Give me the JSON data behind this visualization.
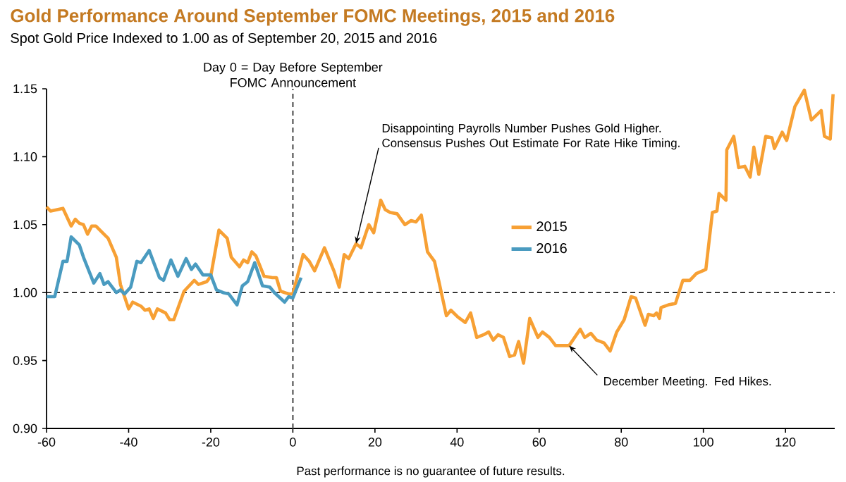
{
  "chart_data": {
    "type": "line",
    "title": "Gold Performance Around September FOMC Meetings, 2015 and 2016",
    "subtitle": "Spot Gold Price Indexed to 1.00 as of September 20, 2015 and 2016",
    "series": [
      {
        "name": "2015",
        "color": "#f7a034",
        "x": [
          -60,
          -59,
          -56,
          -54,
          -53,
          -52,
          -51,
          -50,
          -49,
          -48,
          -46,
          -45,
          -43,
          -42,
          -41,
          -40,
          -39,
          -37,
          -36,
          -35,
          -34,
          -33,
          -31,
          -30,
          -29,
          -26.5,
          -24,
          -23,
          -21,
          -20,
          -18,
          -16,
          -15,
          -13,
          -12,
          -11,
          -10,
          -9,
          -7,
          -5,
          -4,
          -3,
          -1,
          0,
          2.5,
          4,
          5.3,
          7.7,
          10,
          11.3,
          12.5,
          13.6,
          15.4,
          16.6,
          18.5,
          19.7,
          21.4,
          22.5,
          23.7,
          25.4,
          27.3,
          28.8,
          30,
          31.3,
          32.8,
          34.5,
          37.4,
          38.5,
          40.2,
          42,
          43.3,
          44.8,
          46.5,
          47.7,
          48.8,
          50,
          51.3,
          52.8,
          54,
          55,
          56.2,
          57.7,
          59.7,
          60.8,
          62.5,
          64,
          65.4,
          67.3,
          70,
          71.1,
          72.6,
          74,
          75.8,
          77.3,
          78.9,
          80.7,
          82.4,
          83.5,
          85.8,
          86.6,
          87.9,
          88.6,
          89.3,
          89.7,
          91.5,
          93.2,
          95,
          96.7,
          98.3,
          100.6,
          102.2,
          103.3,
          103.8,
          105.5,
          105.7,
          107.4,
          108.6,
          110.1,
          111.4,
          112.3,
          113.5,
          115.2,
          116.7,
          117.3,
          119.2,
          120.3,
          122.3,
          124.6,
          126.3,
          128.7,
          129.5,
          130.9,
          131.6
        ],
        "values": [
          1.063,
          1.06,
          1.062,
          1.049,
          1.054,
          1.051,
          1.05,
          1.043,
          1.049,
          1.049,
          1.043,
          1.04,
          1.026,
          1.006,
          0.997,
          0.988,
          0.993,
          0.99,
          0.987,
          0.988,
          0.981,
          0.988,
          0.985,
          0.98,
          0.98,
          1.001,
          1.009,
          1.006,
          1.008,
          1.012,
          1.046,
          1.04,
          1.026,
          1.019,
          1.024,
          1.022,
          1.03,
          1.027,
          1.012,
          1.011,
          1.011,
          1.001,
          0.999,
          0.999,
          1.028,
          1.023,
          1.016,
          1.033,
          1.016,
          1.004,
          1.028,
          1.025,
          1.036,
          1.033,
          1.05,
          1.044,
          1.068,
          1.061,
          1.059,
          1.058,
          1.05,
          1.053,
          1.052,
          1.057,
          1.03,
          1.023,
          0.983,
          0.987,
          0.982,
          0.978,
          0.985,
          0.967,
          0.969,
          0.971,
          0.965,
          0.969,
          0.967,
          0.953,
          0.954,
          0.964,
          0.948,
          0.981,
          0.967,
          0.971,
          0.967,
          0.961,
          0.961,
          0.961,
          0.973,
          0.967,
          0.97,
          0.965,
          0.963,
          0.957,
          0.971,
          0.98,
          0.997,
          0.996,
          0.976,
          0.984,
          0.983,
          0.985,
          0.981,
          0.989,
          0.991,
          0.992,
          1.009,
          1.009,
          1.014,
          1.017,
          1.059,
          1.06,
          1.073,
          1.068,
          1.105,
          1.115,
          1.092,
          1.093,
          1.085,
          1.107,
          1.087,
          1.115,
          1.114,
          1.106,
          1.118,
          1.112,
          1.137,
          1.149,
          1.127,
          1.134,
          1.115,
          1.113,
          1.146
        ]
      },
      {
        "name": "2016",
        "color": "#4a9bc0",
        "x": [
          -60,
          -58,
          -56,
          -55,
          -54,
          -52,
          -51,
          -48.5,
          -47,
          -46,
          -45,
          -43,
          -42,
          -41,
          -39.5,
          -38,
          -37,
          -35,
          -32.5,
          -31.5,
          -29.7,
          -28,
          -26,
          -24.7,
          -23.7,
          -21.9,
          -20,
          -18.6,
          -17,
          -15.6,
          -13.6,
          -12.3,
          -11,
          -9.3,
          -7.4,
          -5.6,
          -4.5,
          -2,
          -1,
          0,
          2
        ],
        "values": [
          0.997,
          0.997,
          1.023,
          1.023,
          1.041,
          1.035,
          1.026,
          1.007,
          1.014,
          1.006,
          1.008,
          1.0,
          1.002,
          0.999,
          1.004,
          1.023,
          1.022,
          1.031,
          1.011,
          1.009,
          1.024,
          1.012,
          1.025,
          1.017,
          1.021,
          1.013,
          1.013,
          1.002,
          1.0,
          0.999,
          0.991,
          1.005,
          1.008,
          1.022,
          1.005,
          1.004,
          1.0,
          0.993,
          0.997,
          0.996,
          1.011
        ]
      }
    ],
    "xlim": [
      -60,
      132
    ],
    "ylim": [
      0.9,
      1.15
    ],
    "xticks": [
      -60,
      -40,
      -20,
      0,
      20,
      40,
      60,
      80,
      100,
      120
    ],
    "yticks": [
      {
        "value": 0.9,
        "label": "0.90"
      },
      {
        "value": 0.95,
        "label": "0.95"
      },
      {
        "value": 1.0,
        "label": "1.00"
      },
      {
        "value": 1.05,
        "label": "1.05"
      },
      {
        "value": 1.1,
        "label": "1.10"
      },
      {
        "value": 1.15,
        "label": "1.15"
      }
    ],
    "ref_lines": [
      {
        "axis": "y",
        "value": 1.0,
        "line_style": "dashed"
      },
      {
        "axis": "x",
        "value": 0,
        "label": "Day 0 = Day Before September FOMC Announcement",
        "line_style": "dashed"
      }
    ],
    "annotations": [
      {
        "text": "Disappointing Payrolls Number Pushes Gold Higher. Consensus Pushes Out Estimate For Rate Hike Timing.",
        "x": 15.4,
        "y": 1.036
      },
      {
        "text": "December Meeting. Fed Hikes.",
        "x": 67.3,
        "y": 0.961
      },
      "Past performance is no guarantee of future results."
    ],
    "legend": "right"
  }
}
